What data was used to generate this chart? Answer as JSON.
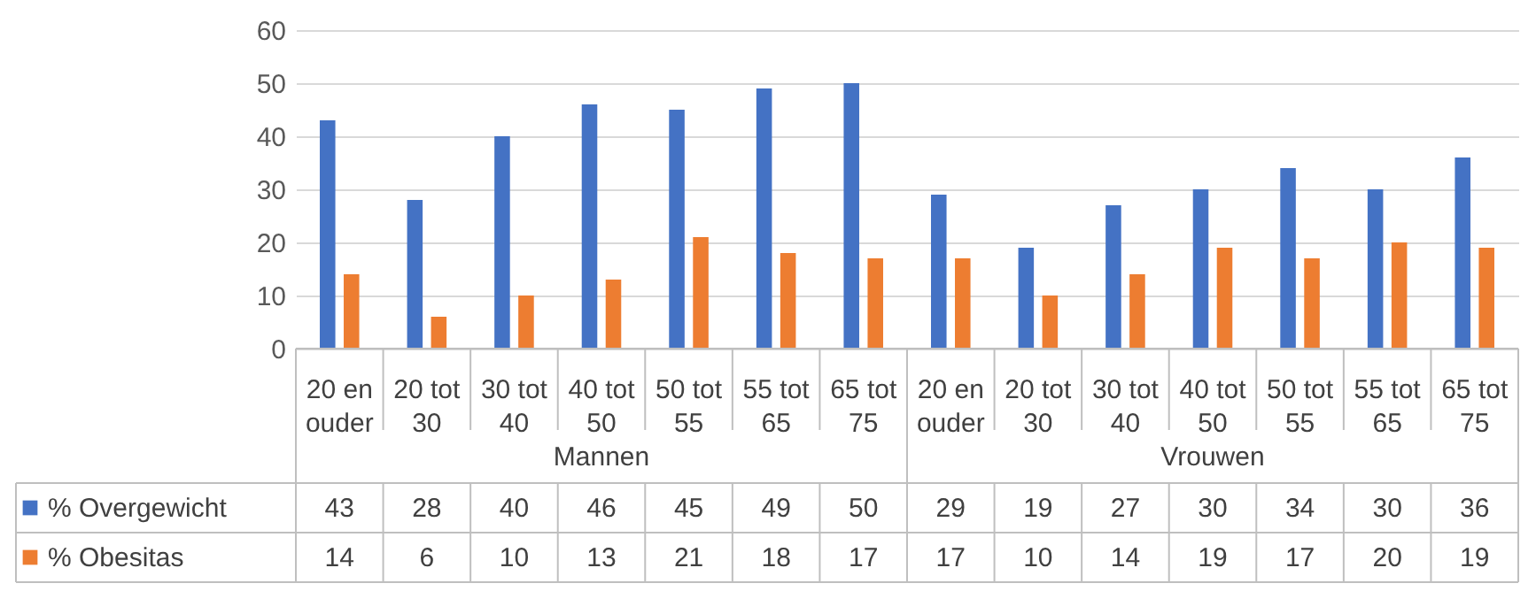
{
  "chart_data": {
    "type": "bar",
    "categories": [
      "20 en ouder",
      "20 tot 30",
      "30 tot 40",
      "40 tot 50",
      "50 tot 55",
      "55 tot 65",
      "65 tot 75",
      "20 en ouder",
      "20 tot 30",
      "30 tot 40",
      "40 tot 50",
      "50 tot 55",
      "55 tot 65",
      "65 tot 75"
    ],
    "series": [
      {
        "name": "% Overgewicht",
        "color": "#4472c4",
        "values": [
          43,
          28,
          40,
          46,
          45,
          49,
          50,
          29,
          19,
          27,
          30,
          34,
          30,
          36
        ]
      },
      {
        "name": "% Obesitas",
        "color": "#ed7d31",
        "values": [
          14,
          6,
          10,
          13,
          21,
          18,
          17,
          17,
          10,
          14,
          19,
          17,
          20,
          19
        ]
      }
    ],
    "annotations": [
      "Mannen",
      "Vrouwen"
    ],
    "ylim": [
      0,
      60
    ],
    "yticks": [
      0,
      10,
      20,
      30,
      40,
      50,
      60
    ],
    "grid": "y",
    "legend": "bottom left",
    "data_labels": true
  }
}
